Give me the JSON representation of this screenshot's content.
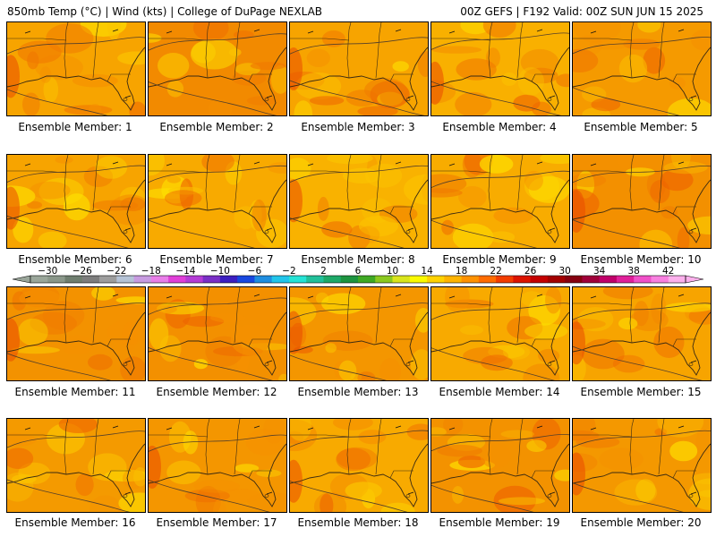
{
  "header": {
    "left": "850mb Temp (°C) | Wind (kts) | College of DuPage NEXLAB",
    "right": "00Z GEFS | F192 Valid: 00Z SUN JUN 15 2025"
  },
  "colorbar": {
    "tick_labels": [
      "−30",
      "−26",
      "−22",
      "−18",
      "−14",
      "−10",
      "−6",
      "−2",
      "2",
      "6",
      "10",
      "14",
      "18",
      "22",
      "26",
      "30",
      "34",
      "38",
      "42"
    ],
    "colors": [
      "#9aa69a",
      "#8a978a",
      "#6f7e6f",
      "#7d7d7d",
      "#9d9d9d",
      "#b5c3d6",
      "#c79be0",
      "#e87ee8",
      "#e03fd8",
      "#b43cd6",
      "#7a2fc6",
      "#3c1fc0",
      "#1848e0",
      "#1f8ee0",
      "#22c5ea",
      "#25e3d5",
      "#22c09a",
      "#1ea968",
      "#1d9440",
      "#3fa924",
      "#8bc920",
      "#d9e51c",
      "#fbfb00",
      "#ffd200",
      "#ffb400",
      "#ff9200",
      "#ff6c00",
      "#f23d00",
      "#dc1400",
      "#c40000",
      "#a30000",
      "#860010",
      "#a0003a",
      "#c0006a",
      "#e0209a",
      "#f050c8",
      "#f880e0",
      "#fcb0ec"
    ]
  },
  "panels": [
    {
      "label": "Ensemble Member: 1",
      "tint": "#f7a400"
    },
    {
      "label": "Ensemble Member: 2",
      "tint": "#f28a00"
    },
    {
      "label": "Ensemble Member: 3",
      "tint": "#f7a400"
    },
    {
      "label": "Ensemble Member: 4",
      "tint": "#f9b000"
    },
    {
      "label": "Ensemble Member: 5",
      "tint": "#f59a00"
    },
    {
      "label": "Ensemble Member: 6",
      "tint": "#f7a400"
    },
    {
      "label": "Ensemble Member: 7",
      "tint": "#f8aa00"
    },
    {
      "label": "Ensemble Member: 8",
      "tint": "#f9b200"
    },
    {
      "label": "Ensemble Member: 9",
      "tint": "#f8ac00"
    },
    {
      "label": "Ensemble Member: 10",
      "tint": "#f39000"
    },
    {
      "label": "Ensemble Member: 11",
      "tint": "#f39200"
    },
    {
      "label": "Ensemble Member: 12",
      "tint": "#f39000"
    },
    {
      "label": "Ensemble Member: 13",
      "tint": "#f49600"
    },
    {
      "label": "Ensemble Member: 14",
      "tint": "#f8aa00"
    },
    {
      "label": "Ensemble Member: 15",
      "tint": "#f7a400"
    },
    {
      "label": "Ensemble Member: 16",
      "tint": "#f49a00"
    },
    {
      "label": "Ensemble Member: 17",
      "tint": "#f49600"
    },
    {
      "label": "Ensemble Member: 18",
      "tint": "#f8aa00"
    },
    {
      "label": "Ensemble Member: 19",
      "tint": "#f39200"
    },
    {
      "label": "Ensemble Member: 20",
      "tint": "#f49800"
    }
  ]
}
